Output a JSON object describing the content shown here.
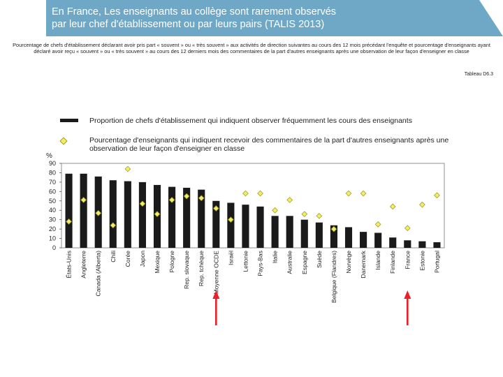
{
  "header": {
    "title_line1": "En France, Les enseignants au collège sont rarement observés",
    "title_line2": "par leur chef d'établissement ou par leurs pairs (TALIS 2013)"
  },
  "subtitle": "Pourcentage de chefs d'établissement déclarant avoir pris part « souvent » ou « très souvent » aux activités de direction suivantes au cours des 12 mois précédant l'enquête et pourcentage d'enseignants ayant déclaré avoir reçu « souvent » ou « très souvent » au cours des 12 derniers mois des commentaires de la part d'autres enseignants après une observation de leur façon d'enseigner en classe",
  "table_ref": "Tableau D6.3",
  "colors": {
    "banner": "#6fa8c6",
    "bar": "#1a1a1a",
    "diamond_fill": "#f2ee6a",
    "diamond_stroke": "#a0a020",
    "arrow": "#e8202a"
  },
  "chart_data": {
    "type": "bar",
    "ylabel": "%",
    "ylim": [
      0,
      90
    ],
    "yticks": [
      0,
      10,
      20,
      30,
      40,
      50,
      60,
      70,
      80,
      90
    ],
    "grid": false,
    "categories": [
      "États-Unis",
      "Angleterre",
      "Canada (Alberta)",
      "Chili",
      "Corée",
      "Japon",
      "Mexique",
      "Pologne",
      "Rep. slovaque",
      "Rep. tchèque",
      "Moyenne OCDE",
      "Israël",
      "Lettonie",
      "Pays-Bas",
      "Italie",
      "Australie",
      "Espagne",
      "Suède",
      "Belgique (Flandres)",
      "Norvège",
      "Danemark",
      "Islande",
      "Finlande",
      "France",
      "Estonie",
      "Portugal"
    ],
    "series": [
      {
        "name": "Proportion de chefs d'établissement qui indiquent observer fréquemment les cours des enseignants",
        "kind": "bar",
        "values": [
          79,
          79,
          76,
          72,
          71,
          70,
          67,
          65,
          64,
          62,
          50,
          48,
          46,
          44,
          34,
          34,
          30,
          27,
          24,
          22,
          17,
          16,
          11,
          8,
          7,
          6
        ]
      },
      {
        "name": "Pourcentage d'enseignants qui indiquent recevoir des commentaires de la part d'autres enseignants après une observation de leur façon d'enseigner en classe",
        "kind": "marker",
        "values": [
          28,
          51,
          37,
          24,
          84,
          47,
          36,
          51,
          55,
          53,
          42,
          30,
          58,
          58,
          40,
          51,
          36,
          34,
          20,
          58,
          58,
          25,
          44,
          21,
          46,
          56
        ]
      }
    ],
    "highlighted_categories": [
      "Moyenne OCDE",
      "France"
    ]
  }
}
